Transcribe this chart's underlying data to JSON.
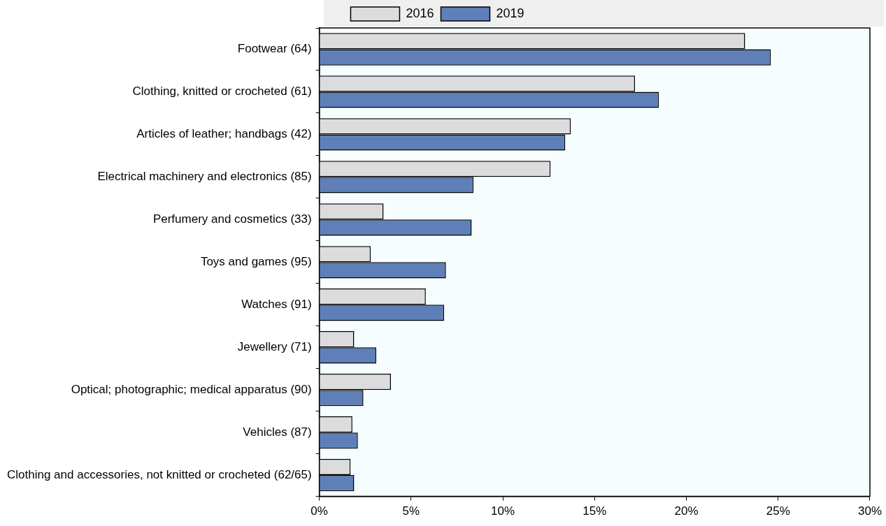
{
  "chart_data": {
    "type": "bar",
    "orientation": "horizontal",
    "categories": [
      "Footwear (64)",
      "Clothing, knitted or crocheted (61)",
      "Articles of leather; handbags (42)",
      "Electrical machinery and electronics (85)",
      "Perfumery and cosmetics (33)",
      "Toys and games (95)",
      "Watches (91)",
      "Jewellery (71)",
      "Optical; photographic; medical apparatus (90)",
      "Vehicles (87)",
      "Clothing and accessories, not knitted or crocheted (62/65)"
    ],
    "series": [
      {
        "name": "2016",
        "color": "#dcdcdc",
        "values": [
          23.2,
          17.2,
          13.7,
          12.6,
          3.5,
          2.8,
          5.8,
          1.9,
          3.9,
          1.8,
          1.7
        ]
      },
      {
        "name": "2019",
        "color": "#5f7fb9",
        "values": [
          24.6,
          18.5,
          13.4,
          8.4,
          8.3,
          6.9,
          6.8,
          3.1,
          2.4,
          2.1,
          1.9
        ]
      }
    ],
    "xlim": [
      0,
      30
    ],
    "xticks": [
      {
        "value": 0,
        "label": "0%"
      },
      {
        "value": 5,
        "label": "5%"
      },
      {
        "value": 10,
        "label": "10%"
      },
      {
        "value": 15,
        "label": "15%"
      },
      {
        "value": 20,
        "label": "20%"
      },
      {
        "value": 25,
        "label": "25%"
      },
      {
        "value": 30,
        "label": "30%"
      }
    ],
    "grid": false,
    "legend": "top"
  }
}
